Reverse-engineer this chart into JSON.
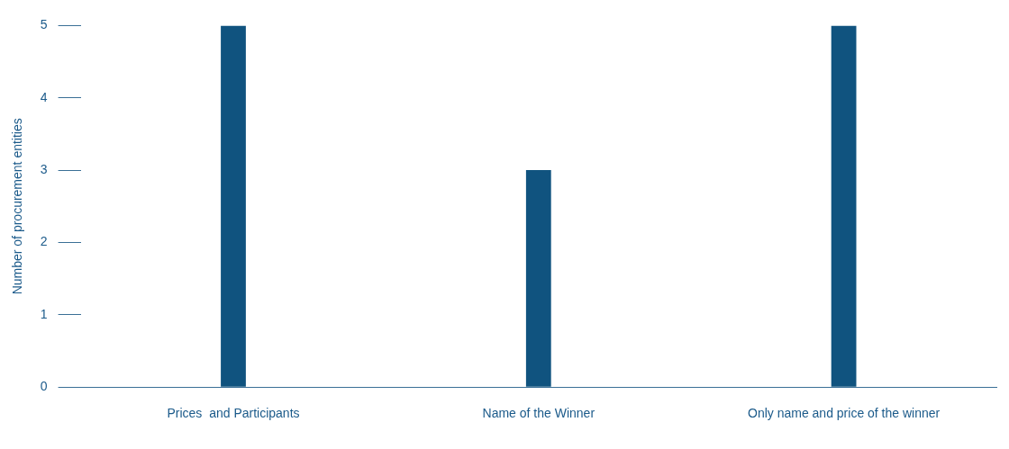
{
  "chart_data": {
    "type": "bar",
    "ylabel": "Number of procurement entities",
    "categories": [
      "Prices  and Participants",
      "Name of the Winner",
      "Only name and price of the winner"
    ],
    "values": [
      5,
      3,
      5
    ],
    "color": "#10537f",
    "ylim": [
      0,
      5
    ],
    "yticks": [
      0,
      1,
      2,
      3,
      4,
      5
    ],
    "grid": false,
    "legend": false
  }
}
